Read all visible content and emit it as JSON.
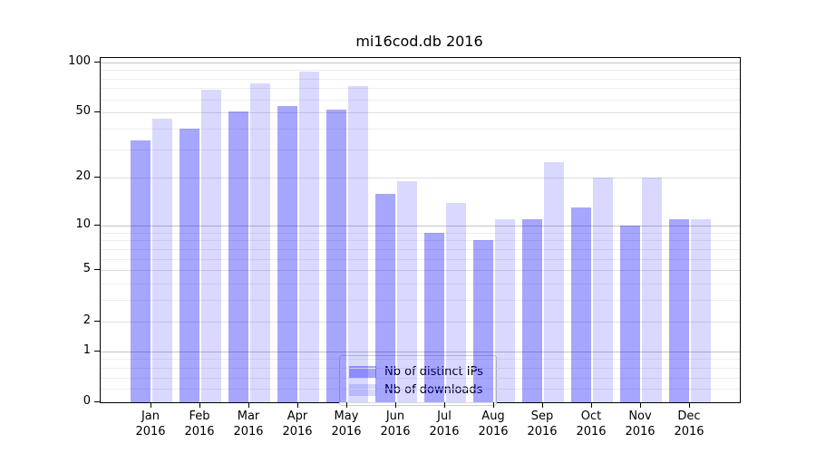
{
  "chart_data": {
    "type": "bar",
    "title": "mi16cod.db 2016",
    "categories": [
      {
        "month": "Jan",
        "year": "2016"
      },
      {
        "month": "Feb",
        "year": "2016"
      },
      {
        "month": "Mar",
        "year": "2016"
      },
      {
        "month": "Apr",
        "year": "2016"
      },
      {
        "month": "May",
        "year": "2016"
      },
      {
        "month": "Jun",
        "year": "2016"
      },
      {
        "month": "Jul",
        "year": "2016"
      },
      {
        "month": "Aug",
        "year": "2016"
      },
      {
        "month": "Sep",
        "year": "2016"
      },
      {
        "month": "Oct",
        "year": "2016"
      },
      {
        "month": "Nov",
        "year": "2016"
      },
      {
        "month": "Dec",
        "year": "2016"
      }
    ],
    "series": [
      {
        "name": "Nb of distinct IPs",
        "fill": "rgba(0,0,255,0.35)",
        "fill_hex_on_white": "#a6a6ff",
        "values": [
          34,
          40,
          51,
          55,
          52,
          16,
          9,
          8,
          11,
          13,
          10,
          11
        ]
      },
      {
        "name": "Nb of downloads",
        "fill": "rgba(0,0,255,0.15)",
        "fill_hex_on_white": "#d9d9ff",
        "values": [
          46,
          69,
          75,
          88,
          72,
          19,
          14,
          11,
          25,
          20,
          20,
          11
        ]
      }
    ],
    "xlabel": "",
    "ylabel": "",
    "yscale": "log1p",
    "yticks": [
      0,
      1,
      2,
      5,
      10,
      20,
      50,
      100
    ],
    "minor_yticks": [
      0.2,
      0.4,
      0.6,
      0.8,
      3,
      4,
      6,
      7,
      8,
      9,
      30,
      40,
      60,
      70,
      80,
      90
    ],
    "ylim": [
      0,
      106
    ],
    "grid": true,
    "legend_position": "inside lower-center",
    "axis_color": "#000000"
  }
}
